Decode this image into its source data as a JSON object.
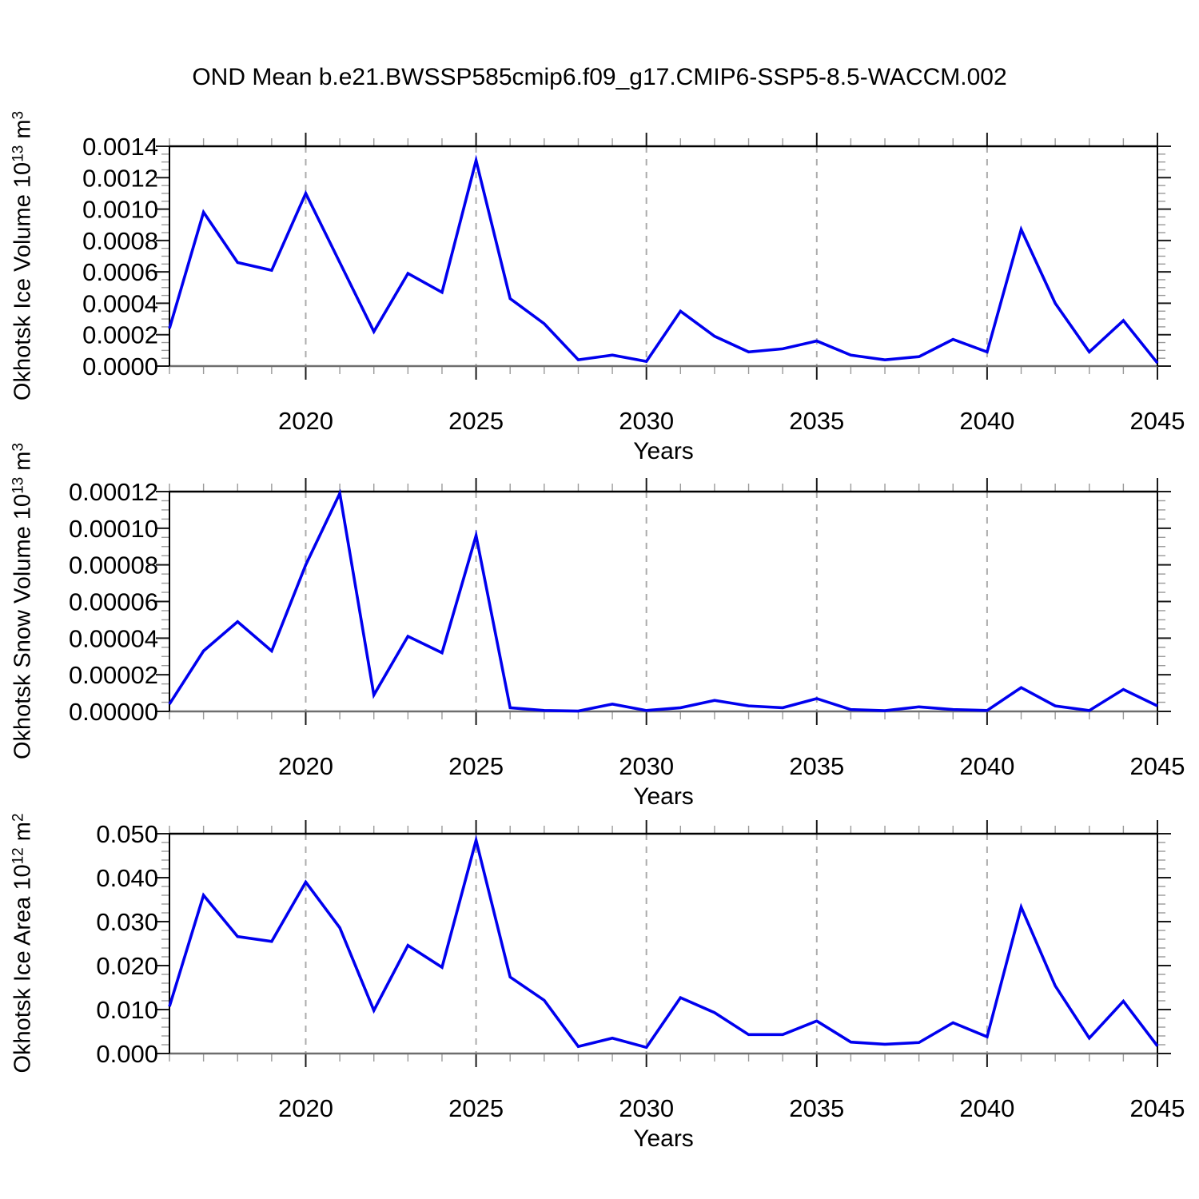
{
  "title": "OND Mean b.e21.BWSSP585cmip6.f09_g17.CMIP6-SSP5-8.5-WACCM.002",
  "years": [
    2016,
    2017,
    2018,
    2019,
    2020,
    2021,
    2022,
    2023,
    2024,
    2025,
    2026,
    2027,
    2028,
    2029,
    2030,
    2031,
    2032,
    2033,
    2034,
    2035,
    2036,
    2037,
    2038,
    2039,
    2040,
    2041,
    2042,
    2043,
    2044,
    2045
  ],
  "xtick_labels": [
    "2020",
    "2025",
    "2030",
    "2035",
    "2040",
    "2045"
  ],
  "grid_years": [
    2020,
    2025,
    2030,
    2035,
    2040
  ],
  "xlim": [
    2016,
    2045
  ],
  "colors": {
    "line": "#0000EE",
    "grid": "#ABABAB",
    "spine": "#000000",
    "bottom_spine": "#6E6E6E",
    "major_tick": "#1A1A1A",
    "minor_tick": "#9A9A9A"
  },
  "chart_data": [
    {
      "type": "line",
      "name": "okhotsk-ice-volume",
      "title": "Okhotsk Ice Volume 10^13 m^3",
      "ylabel": {
        "base": "Okhotsk Ice Volume 10",
        "exp1": "13",
        "mid": " m",
        "exp2": "3"
      },
      "xlabel": "Years",
      "ylim": [
        0,
        0.0014
      ],
      "ytick_labels": [
        "0.0000",
        "0.0002",
        "0.0004",
        "0.0006",
        "0.0008",
        "0.0010",
        "0.0012",
        "0.0014"
      ],
      "minor_per_major": 3,
      "grid": "vertical-dashed",
      "legend": "none",
      "values": [
        0.00024,
        0.00098,
        0.00066,
        0.00061,
        0.0011,
        0.00066,
        0.00022,
        0.00059,
        0.00047,
        0.00131,
        0.00043,
        0.00027,
        4e-05,
        7e-05,
        3e-05,
        0.00035,
        0.00019,
        9e-05,
        0.00011,
        0.00016,
        7e-05,
        4e-05,
        6e-05,
        0.00017,
        9e-05,
        0.00087,
        0.0004,
        9e-05,
        0.00029,
        2e-05
      ]
    },
    {
      "type": "line",
      "name": "okhotsk-snow-volume",
      "title": "Okhotsk Snow Volume 10^13 m^3",
      "ylabel": {
        "base": "Okhotsk Snow Volume 10",
        "exp1": "13",
        "mid": " m",
        "exp2": "3"
      },
      "xlabel": "Years",
      "ylim": [
        0,
        0.00012
      ],
      "ytick_labels": [
        "0.00000",
        "0.00002",
        "0.00004",
        "0.00006",
        "0.00008",
        "0.00010",
        "0.00012"
      ],
      "minor_per_major": 3,
      "grid": "vertical-dashed",
      "legend": "none",
      "values": [
        4e-06,
        3.3e-05,
        4.9e-05,
        3.3e-05,
        8e-05,
        0.000119,
        9e-06,
        4.1e-05,
        3.2e-05,
        9.6e-05,
        2e-06,
        5e-07,
        2e-07,
        4e-06,
        5e-07,
        2e-06,
        6e-06,
        3e-06,
        2e-06,
        7e-06,
        1e-06,
        4e-07,
        2.5e-06,
        1e-06,
        5e-07,
        1.3e-05,
        3e-06,
        5e-07,
        1.2e-05,
        3e-06
      ]
    },
    {
      "type": "line",
      "name": "okhotsk-ice-area",
      "title": "Okhotsk Ice Area 10^12 m^2",
      "ylabel": {
        "base": "Okhotsk Ice Area 10",
        "exp1": "12",
        "mid": " m",
        "exp2": "2"
      },
      "xlabel": "Years",
      "ylim": [
        0,
        0.05
      ],
      "ytick_labels": [
        "0.000",
        "0.010",
        "0.020",
        "0.030",
        "0.040",
        "0.050"
      ],
      "minor_per_major": 4,
      "grid": "vertical-dashed",
      "legend": "none",
      "values": [
        0.0107,
        0.036,
        0.0266,
        0.0255,
        0.039,
        0.0286,
        0.0098,
        0.0246,
        0.0196,
        0.0485,
        0.0174,
        0.0121,
        0.0016,
        0.0035,
        0.0014,
        0.0127,
        0.0093,
        0.0043,
        0.0043,
        0.0074,
        0.0026,
        0.0021,
        0.0025,
        0.007,
        0.0038,
        0.0333,
        0.0154,
        0.0035,
        0.0119,
        0.0017
      ]
    }
  ]
}
